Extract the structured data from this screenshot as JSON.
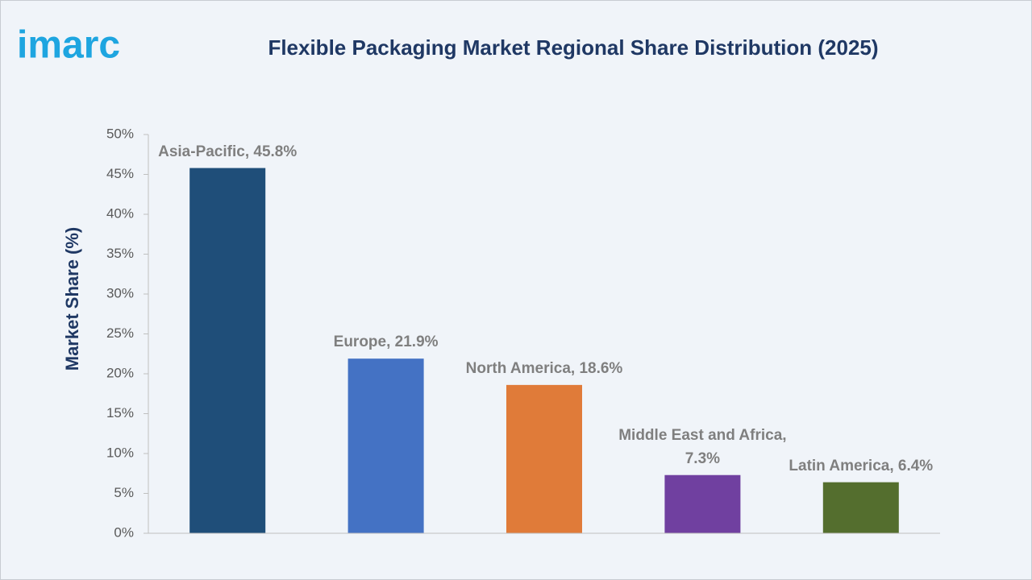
{
  "logo": "imarc",
  "chart_data": {
    "type": "bar",
    "title": "Flexible Packaging Market Regional Share Distribution (2025)",
    "y_label": "Market Share (%)",
    "values": [
      45.8,
      21.9,
      18.6,
      7.3,
      6.4
    ],
    "value_labels": [
      "Asia-Pacific, 45.8%",
      "Europe, 21.9%",
      "North America, 18.6%",
      "Middle East and Africa, 7.3%",
      "Latin America, 6.4%"
    ],
    "colors": [
      "#1f4e79",
      "#4472c4",
      "#e07b39",
      "#7040a0",
      "#546e2e"
    ],
    "ylim": [
      0,
      50
    ],
    "yticks": [
      {
        "value": 0,
        "label": "0%"
      },
      {
        "value": 5,
        "label": "5%"
      },
      {
        "value": 10,
        "label": "10%"
      },
      {
        "value": 15,
        "label": "15%"
      },
      {
        "value": 20,
        "label": "20%"
      },
      {
        "value": 25,
        "label": "25%"
      },
      {
        "value": 30,
        "label": "30%"
      },
      {
        "value": 35,
        "label": "35%"
      },
      {
        "value": 40,
        "label": "40%"
      },
      {
        "value": 45,
        "label": "45%"
      },
      {
        "value": 50,
        "label": "50%"
      }
    ],
    "grid": false
  }
}
